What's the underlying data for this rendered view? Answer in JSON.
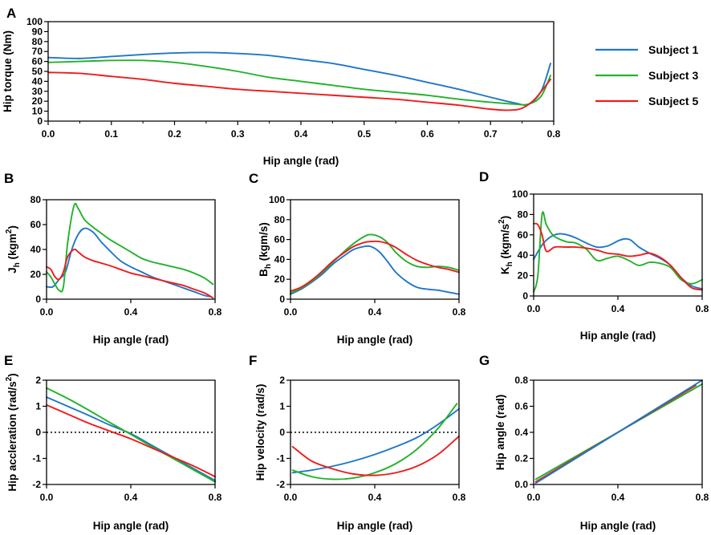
{
  "colors": {
    "subject1": "#1f77c8",
    "subject3": "#22b22b",
    "subject5": "#ee1c1c"
  },
  "legend": [
    {
      "label": "Subject  1",
      "color": "#1f77c8"
    },
    {
      "label": "Subject  3",
      "color": "#22b22b"
    },
    {
      "label": "Subject  5",
      "color": "#ee1c1c"
    }
  ],
  "chart_data": [
    {
      "panel": "A",
      "type": "line",
      "xlabel": "Hip angle (rad)",
      "ylabel": "Hip torque (Nm)",
      "xlim": [
        0,
        0.8
      ],
      "ylim": [
        0,
        100
      ],
      "xticks": [
        0,
        0.1,
        0.2,
        0.3,
        0.4,
        0.5,
        0.6,
        0.7,
        0.8
      ],
      "xtick_labels": [
        "0.0",
        "0.1",
        "0.2",
        "0.3",
        "0.4",
        "0.5",
        "0.6",
        "0.7",
        "0.8"
      ],
      "yticks": [
        0,
        10,
        20,
        30,
        40,
        50,
        60,
        70,
        80,
        90,
        100
      ],
      "ytick_labels": [
        "0",
        "10",
        "20",
        "30",
        "40",
        "50",
        "60",
        "70",
        "80",
        "90",
        "100"
      ],
      "series": [
        {
          "name": "Subject  1",
          "color": "#1f77c8",
          "x": [
            0,
            0.05,
            0.1,
            0.15,
            0.2,
            0.25,
            0.3,
            0.35,
            0.4,
            0.45,
            0.5,
            0.55,
            0.6,
            0.65,
            0.7,
            0.74,
            0.76,
            0.78,
            0.795
          ],
          "y": [
            64,
            63,
            65,
            67,
            68.5,
            69,
            68,
            66,
            62,
            58,
            52,
            46,
            39,
            32,
            24,
            18,
            17,
            30,
            58
          ]
        },
        {
          "name": "Subject  3",
          "color": "#22b22b",
          "x": [
            0,
            0.05,
            0.1,
            0.15,
            0.2,
            0.25,
            0.3,
            0.35,
            0.4,
            0.45,
            0.5,
            0.55,
            0.6,
            0.65,
            0.7,
            0.74,
            0.76,
            0.78,
            0.795
          ],
          "y": [
            59,
            60,
            61,
            61,
            59,
            55,
            50,
            44,
            40,
            36,
            32,
            29,
            26,
            22,
            19,
            17,
            17,
            25,
            46
          ]
        },
        {
          "name": "Subject  5",
          "color": "#ee1c1c",
          "x": [
            0,
            0.05,
            0.1,
            0.15,
            0.2,
            0.25,
            0.3,
            0.35,
            0.4,
            0.45,
            0.5,
            0.55,
            0.6,
            0.65,
            0.7,
            0.73,
            0.75,
            0.77,
            0.795
          ],
          "y": [
            49,
            48,
            45,
            42,
            38,
            35,
            32,
            30,
            28,
            26,
            24,
            22,
            19,
            16,
            12,
            11,
            13,
            22,
            42
          ]
        }
      ]
    },
    {
      "panel": "B",
      "type": "line",
      "xlabel": "Hip angle (rad)",
      "ylabel_main": "J",
      "ylabel_sub": "h",
      "ylabel_rest": " (kgm",
      "ylabel_sup": "2",
      "ylabel_end": ")",
      "xlim": [
        0,
        0.8
      ],
      "ylim": [
        0,
        80
      ],
      "xticks": [
        0,
        0.4,
        0.8
      ],
      "xtick_labels": [
        "0.0",
        "0.4",
        "0.8"
      ],
      "yticks": [
        0,
        20,
        40,
        60,
        80
      ],
      "ytick_labels": [
        "0",
        "20",
        "40",
        "60",
        "80"
      ],
      "series": [
        {
          "name": "Subject  1",
          "color": "#1f77c8",
          "x": [
            0,
            0.03,
            0.06,
            0.09,
            0.12,
            0.15,
            0.18,
            0.22,
            0.26,
            0.3,
            0.35,
            0.4,
            0.45,
            0.5,
            0.55,
            0.6,
            0.65,
            0.7,
            0.75,
            0.78
          ],
          "y": [
            10,
            10,
            16,
            22,
            40,
            52,
            57,
            54,
            46,
            39,
            31,
            26,
            22,
            18,
            15,
            12,
            9,
            6,
            3,
            2
          ]
        },
        {
          "name": "Subject  3",
          "color": "#22b22b",
          "x": [
            0,
            0.02,
            0.04,
            0.06,
            0.08,
            0.1,
            0.13,
            0.15,
            0.18,
            0.22,
            0.26,
            0.3,
            0.35,
            0.4,
            0.45,
            0.5,
            0.55,
            0.6,
            0.65,
            0.7,
            0.75,
            0.79
          ],
          "y": [
            22,
            18,
            12,
            7,
            10,
            45,
            75,
            73,
            64,
            58,
            53,
            48,
            43,
            38,
            33,
            30,
            28,
            26,
            24,
            21,
            17,
            12
          ]
        },
        {
          "name": "Subject  5",
          "color": "#ee1c1c",
          "x": [
            0,
            0.02,
            0.04,
            0.06,
            0.08,
            0.1,
            0.13,
            0.15,
            0.18,
            0.22,
            0.26,
            0.3,
            0.35,
            0.4,
            0.45,
            0.5,
            0.55,
            0.6,
            0.65,
            0.7,
            0.75,
            0.79
          ],
          "y": [
            26,
            24,
            18,
            16,
            22,
            34,
            40,
            38,
            34,
            31,
            29,
            27,
            24,
            21,
            19,
            17,
            15,
            13,
            11,
            8,
            5,
            1
          ]
        }
      ]
    },
    {
      "panel": "C",
      "type": "line",
      "xlabel": "Hip angle (rad)",
      "ylabel_main": "B",
      "ylabel_sub": "h",
      "ylabel_rest": " (kgm/s)",
      "ylabel_sup": "",
      "ylabel_end": "",
      "xlim": [
        0,
        0.8
      ],
      "ylim": [
        0,
        100
      ],
      "xticks": [
        0,
        0.4,
        0.8
      ],
      "xtick_labels": [
        "0.0",
        "0.4",
        "0.8"
      ],
      "yticks": [
        0,
        20,
        40,
        60,
        80,
        100
      ],
      "ytick_labels": [
        "0",
        "20",
        "40",
        "60",
        "80",
        "100"
      ],
      "series": [
        {
          "name": "Subject  1",
          "color": "#1f77c8",
          "x": [
            0,
            0.05,
            0.1,
            0.15,
            0.2,
            0.25,
            0.3,
            0.35,
            0.38,
            0.42,
            0.46,
            0.5,
            0.55,
            0.6,
            0.65,
            0.7,
            0.75,
            0.8
          ],
          "y": [
            5,
            10,
            17,
            25,
            35,
            43,
            50,
            53,
            53,
            48,
            38,
            27,
            18,
            12,
            10,
            9,
            7,
            5
          ]
        },
        {
          "name": "Subject  3",
          "color": "#22b22b",
          "x": [
            0,
            0.05,
            0.1,
            0.15,
            0.2,
            0.25,
            0.3,
            0.35,
            0.38,
            0.42,
            0.46,
            0.5,
            0.55,
            0.6,
            0.65,
            0.7,
            0.75,
            0.8
          ],
          "y": [
            6,
            11,
            18,
            27,
            37,
            47,
            56,
            63,
            65,
            63,
            57,
            47,
            38,
            33,
            32,
            33,
            32,
            29
          ]
        },
        {
          "name": "Subject  5",
          "color": "#ee1c1c",
          "x": [
            0,
            0.05,
            0.1,
            0.15,
            0.2,
            0.25,
            0.3,
            0.35,
            0.38,
            0.42,
            0.46,
            0.5,
            0.55,
            0.6,
            0.65,
            0.7,
            0.75,
            0.8
          ],
          "y": [
            8,
            12,
            19,
            28,
            38,
            46,
            53,
            57,
            58,
            58,
            56,
            52,
            45,
            39,
            35,
            32,
            30,
            27
          ]
        }
      ]
    },
    {
      "panel": "D",
      "type": "line",
      "xlabel": "Hip angle (rad)",
      "ylabel_main": "K",
      "ylabel_sub": "h",
      "ylabel_rest": " (kgm/s",
      "ylabel_sup": "2",
      "ylabel_end": ")",
      "xlim": [
        0,
        0.8
      ],
      "ylim": [
        0,
        100
      ],
      "xticks": [
        0,
        0.4,
        0.8
      ],
      "xtick_labels": [
        "0.0",
        "0.4",
        "0.8"
      ],
      "yticks": [
        0,
        20,
        40,
        60,
        80,
        100
      ],
      "ytick_labels": [
        "0",
        "20",
        "40",
        "60",
        "80",
        "100"
      ],
      "series": [
        {
          "name": "Subject  1",
          "color": "#1f77c8",
          "x": [
            0,
            0.04,
            0.08,
            0.12,
            0.16,
            0.2,
            0.25,
            0.3,
            0.35,
            0.4,
            0.43,
            0.46,
            0.5,
            0.55,
            0.6,
            0.65,
            0.7,
            0.75,
            0.8
          ],
          "y": [
            36,
            50,
            58,
            61,
            60,
            57,
            52,
            48,
            49,
            54,
            56,
            55,
            48,
            42,
            37,
            30,
            18,
            10,
            7
          ]
        },
        {
          "name": "Subject  3",
          "color": "#22b22b",
          "x": [
            0,
            0.02,
            0.04,
            0.06,
            0.09,
            0.12,
            0.16,
            0.2,
            0.25,
            0.3,
            0.35,
            0.4,
            0.45,
            0.5,
            0.55,
            0.6,
            0.65,
            0.7,
            0.75,
            0.8
          ],
          "y": [
            4,
            20,
            80,
            70,
            60,
            56,
            53,
            52,
            46,
            35,
            37,
            39,
            35,
            30,
            33,
            32,
            28,
            16,
            12,
            16
          ]
        },
        {
          "name": "Subject  5",
          "color": "#ee1c1c",
          "x": [
            0,
            0.02,
            0.04,
            0.06,
            0.1,
            0.15,
            0.2,
            0.25,
            0.3,
            0.35,
            0.4,
            0.45,
            0.5,
            0.55,
            0.6,
            0.65,
            0.7,
            0.75,
            0.8
          ],
          "y": [
            71,
            70,
            60,
            44,
            48,
            48,
            48,
            47,
            45,
            42,
            41,
            39,
            40,
            42,
            38,
            30,
            18,
            8,
            6
          ]
        }
      ]
    },
    {
      "panel": "E",
      "type": "line",
      "xlabel": "Hip angle (rad)",
      "ylabel_main": "Hip accleration (rad/s",
      "ylabel_sub": "",
      "ylabel_rest": "",
      "ylabel_sup": "2",
      "ylabel_end": ")",
      "xlim": [
        0,
        0.8
      ],
      "ylim": [
        -2,
        2
      ],
      "zero_line": true,
      "xticks": [
        0,
        0.4,
        0.8
      ],
      "xtick_labels": [
        "0.0",
        "0.4",
        "0.8"
      ],
      "yticks": [
        -2,
        -1,
        0,
        1,
        2
      ],
      "ytick_labels": [
        "-2",
        "-1",
        "0",
        "1",
        "2"
      ],
      "series": [
        {
          "name": "Subject  1",
          "color": "#1f77c8",
          "x": [
            0,
            0.1,
            0.2,
            0.3,
            0.4,
            0.5,
            0.6,
            0.7,
            0.8
          ],
          "y": [
            1.35,
            1.0,
            0.65,
            0.28,
            -0.05,
            -0.5,
            -0.95,
            -1.4,
            -1.85
          ]
        },
        {
          "name": "Subject  3",
          "color": "#22b22b",
          "x": [
            0,
            0.1,
            0.2,
            0.3,
            0.4,
            0.5,
            0.6,
            0.7,
            0.8
          ],
          "y": [
            1.7,
            1.3,
            0.85,
            0.38,
            -0.08,
            -0.55,
            -1.0,
            -1.45,
            -1.9
          ]
        },
        {
          "name": "Subject  5",
          "color": "#ee1c1c",
          "x": [
            0,
            0.1,
            0.2,
            0.3,
            0.4,
            0.5,
            0.6,
            0.7,
            0.8
          ],
          "y": [
            1.05,
            0.7,
            0.35,
            0.05,
            -0.25,
            -0.6,
            -0.95,
            -1.3,
            -1.7
          ]
        }
      ]
    },
    {
      "panel": "F",
      "type": "line",
      "xlabel": "Hip angle (rad)",
      "ylabel_main": "Hip velocity (rad/s)",
      "ylabel_sub": "",
      "ylabel_rest": "",
      "ylabel_sup": "",
      "ylabel_end": "",
      "xlim": [
        0,
        0.8
      ],
      "ylim": [
        -2,
        2
      ],
      "zero_line": true,
      "xticks": [
        0,
        0.4,
        0.8
      ],
      "xtick_labels": [
        "0.0",
        "0.4",
        "0.8"
      ],
      "yticks": [
        -2,
        -1,
        0,
        1,
        2
      ],
      "ytick_labels": [
        "-2",
        "-1",
        "0",
        "1",
        "2"
      ],
      "series": [
        {
          "name": "Subject  1",
          "color": "#1f77c8",
          "x": [
            0.01,
            0.1,
            0.2,
            0.3,
            0.4,
            0.5,
            0.6,
            0.7,
            0.8
          ],
          "y": [
            -1.55,
            -1.45,
            -1.3,
            -1.1,
            -0.85,
            -0.55,
            -0.2,
            0.3,
            0.9
          ]
        },
        {
          "name": "Subject  3",
          "color": "#22b22b",
          "x": [
            0.01,
            0.1,
            0.2,
            0.3,
            0.4,
            0.5,
            0.6,
            0.7,
            0.79
          ],
          "y": [
            -1.45,
            -1.7,
            -1.8,
            -1.75,
            -1.55,
            -1.2,
            -0.65,
            0.15,
            1.1
          ]
        },
        {
          "name": "Subject  5",
          "color": "#ee1c1c",
          "x": [
            0.01,
            0.1,
            0.2,
            0.3,
            0.4,
            0.5,
            0.6,
            0.7,
            0.8
          ],
          "y": [
            -0.55,
            -1.1,
            -1.4,
            -1.6,
            -1.65,
            -1.55,
            -1.3,
            -0.85,
            -0.15
          ]
        }
      ]
    },
    {
      "panel": "G",
      "type": "line",
      "xlabel": "Hip angle (rad)",
      "ylabel_main": "Hip angle (rad)",
      "ylabel_sub": "",
      "ylabel_rest": "",
      "ylabel_sup": "",
      "ylabel_end": "",
      "xlim": [
        0,
        0.8
      ],
      "ylim": [
        0,
        0.8
      ],
      "xticks": [
        0,
        0.4,
        0.8
      ],
      "xtick_labels": [
        "0.0",
        "0.4",
        "0.8"
      ],
      "yticks": [
        0,
        0.2,
        0.4,
        0.6,
        0.8
      ],
      "ytick_labels": [
        "0.0",
        "0.2",
        "0.4",
        "0.6",
        "0.8"
      ],
      "series": [
        {
          "name": "Subject  3",
          "color": "#22b22b",
          "x": [
            0.01,
            0.8
          ],
          "y": [
            0.04,
            0.77
          ]
        },
        {
          "name": "Subject  5",
          "color": "#ee1c1c",
          "x": [
            0.01,
            0.77
          ],
          "y": [
            0.02,
            0.76
          ]
        },
        {
          "name": "Subject  1",
          "color": "#1f77c8",
          "x": [
            0.01,
            0.8
          ],
          "y": [
            0.01,
            0.8
          ]
        }
      ]
    }
  ]
}
